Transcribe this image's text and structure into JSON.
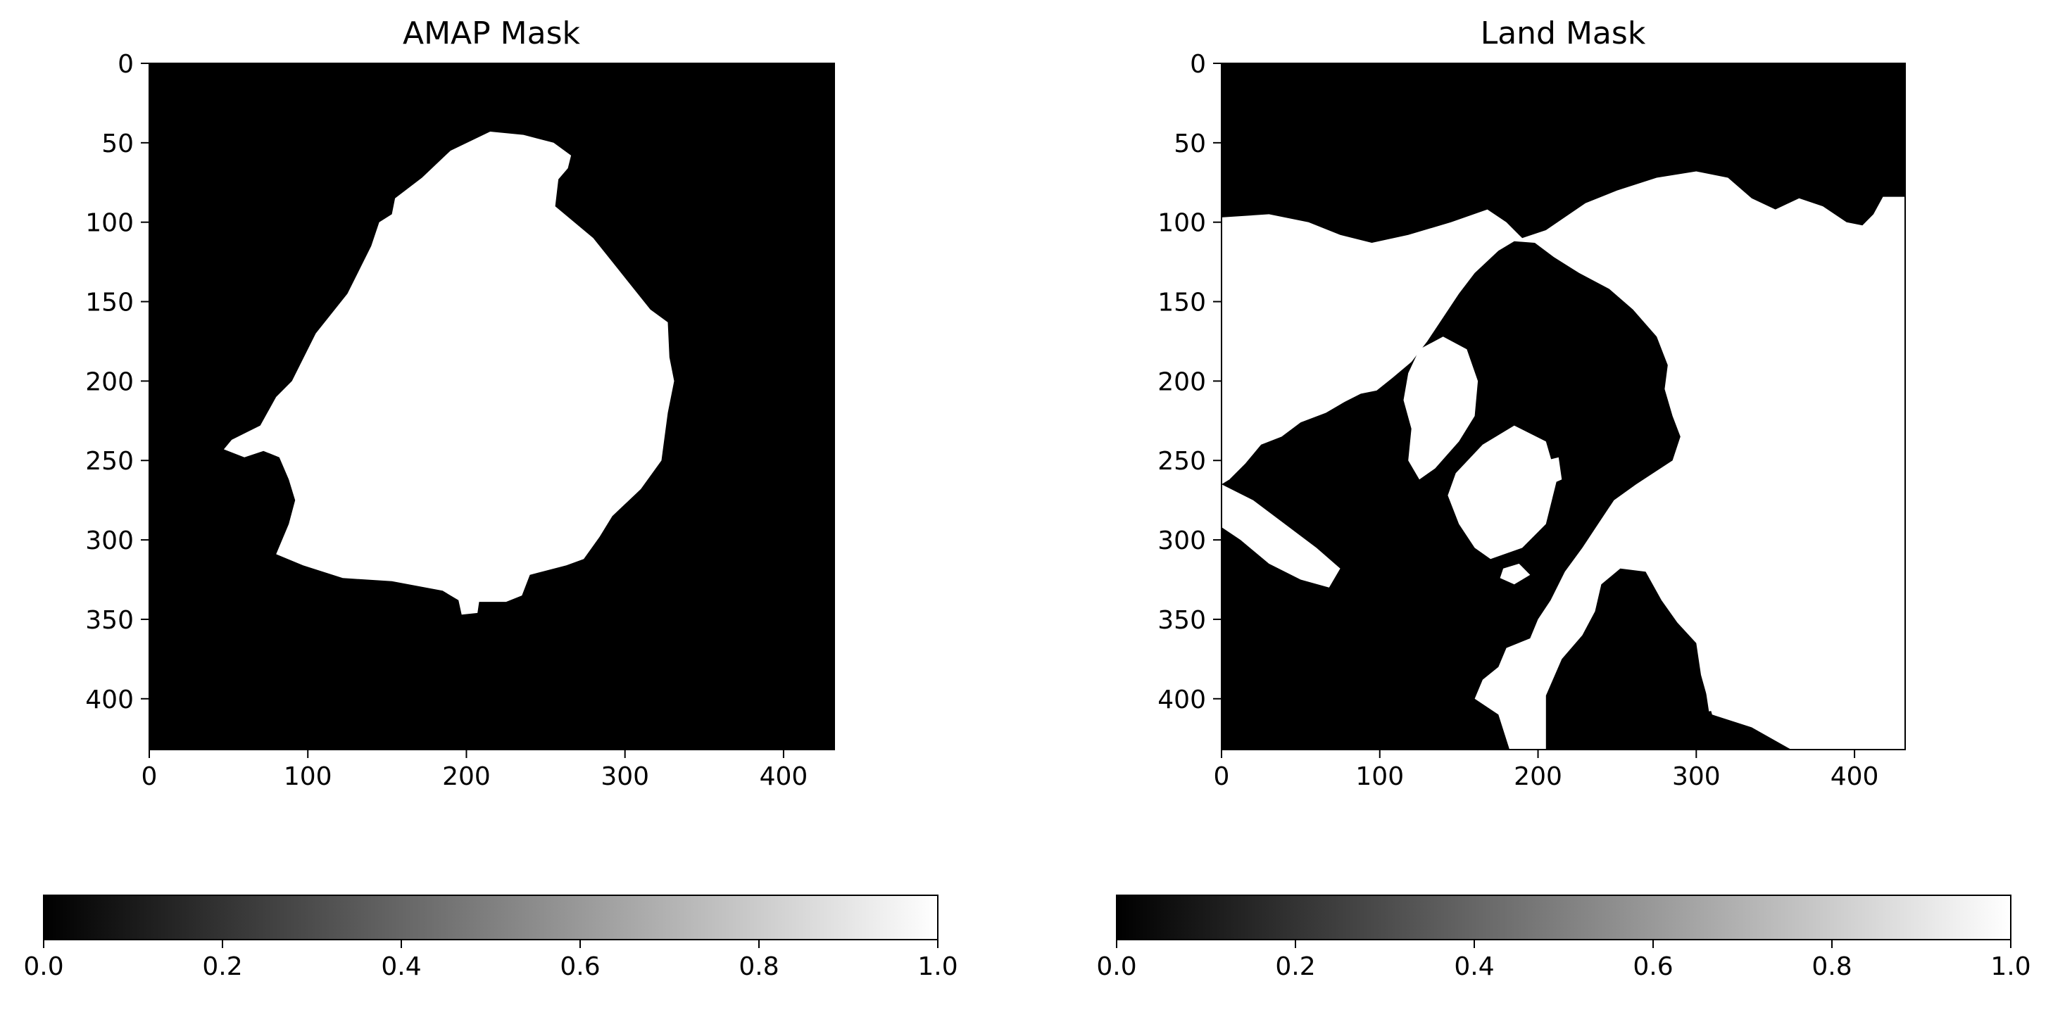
{
  "figure": {
    "background": "#ffffff"
  },
  "chart_data": [
    {
      "type": "heatmap",
      "title": "AMAP Mask",
      "xlabel": "",
      "ylabel": "",
      "xlim": [
        0,
        432
      ],
      "ylim": [
        432,
        0
      ],
      "x_ticks": [
        0,
        100,
        200,
        300,
        400
      ],
      "y_ticks": [
        0,
        50,
        100,
        150,
        200,
        250,
        300,
        350,
        400
      ],
      "colormap": "gray",
      "value_range": [
        0,
        1
      ],
      "grid": false,
      "description_values": "binary mask; 1 (white) inside AMAP region, 0 (black) outside",
      "colorbar": {
        "orientation": "horizontal",
        "ticks": [
          "0.0",
          "0.2",
          "0.4",
          "0.6",
          "0.8",
          "1.0"
        ],
        "range": [
          0,
          1
        ]
      },
      "region_value_1_boundary": [
        [
          215,
          43
        ],
        [
          236,
          45
        ],
        [
          255,
          50
        ],
        [
          266,
          58
        ],
        [
          264,
          66
        ],
        [
          258,
          73
        ],
        [
          256,
          90
        ],
        [
          280,
          110
        ],
        [
          292,
          125
        ],
        [
          304,
          140
        ],
        [
          316,
          155
        ],
        [
          327,
          163
        ],
        [
          328,
          185
        ],
        [
          331,
          200
        ],
        [
          327,
          220
        ],
        [
          323,
          250
        ],
        [
          310,
          268
        ],
        [
          292,
          285
        ],
        [
          284,
          298
        ],
        [
          274,
          312
        ],
        [
          263,
          316
        ],
        [
          240,
          322
        ],
        [
          235,
          335
        ],
        [
          225,
          339
        ],
        [
          208,
          339
        ],
        [
          207,
          346
        ],
        [
          197,
          347
        ],
        [
          195,
          338
        ],
        [
          185,
          332
        ],
        [
          153,
          326
        ],
        [
          122,
          324
        ],
        [
          97,
          316
        ],
        [
          80,
          309
        ],
        [
          88,
          290
        ],
        [
          92,
          275
        ],
        [
          88,
          262
        ],
        [
          82,
          248
        ],
        [
          72,
          244
        ],
        [
          60,
          248
        ],
        [
          47,
          243
        ],
        [
          52,
          237
        ],
        [
          62,
          232
        ],
        [
          70,
          228
        ],
        [
          80,
          210
        ],
        [
          90,
          200
        ],
        [
          95,
          190
        ],
        [
          105,
          170
        ],
        [
          125,
          145
        ],
        [
          140,
          115
        ],
        [
          145,
          100
        ],
        [
          153,
          95
        ],
        [
          155,
          85
        ],
        [
          172,
          72
        ],
        [
          190,
          55
        ]
      ]
    },
    {
      "type": "heatmap",
      "title": "Land Mask",
      "xlabel": "",
      "ylabel": "",
      "xlim": [
        0,
        432
      ],
      "ylim": [
        432,
        0
      ],
      "x_ticks": [
        0,
        100,
        200,
        300,
        400
      ],
      "y_ticks": [
        0,
        50,
        100,
        150,
        200,
        250,
        300,
        350,
        400
      ],
      "colormap": "gray",
      "value_range": [
        0,
        1
      ],
      "grid": false,
      "description_values": "binary mask; 1 (white) land, 0 (black) ocean",
      "colorbar": {
        "orientation": "horizontal",
        "ticks": [
          "0.0",
          "0.2",
          "0.4",
          "0.6",
          "0.8",
          "1.0"
        ],
        "range": [
          0,
          1
        ]
      },
      "land_value_1_regions": [
        [
          [
            0,
            97
          ],
          [
            30,
            95
          ],
          [
            55,
            100
          ],
          [
            75,
            108
          ],
          [
            95,
            113
          ],
          [
            118,
            108
          ],
          [
            145,
            100
          ],
          [
            168,
            92
          ],
          [
            180,
            100
          ],
          [
            190,
            110
          ],
          [
            205,
            105
          ],
          [
            230,
            88
          ],
          [
            250,
            80
          ],
          [
            275,
            72
          ],
          [
            300,
            68
          ],
          [
            320,
            72
          ],
          [
            335,
            85
          ],
          [
            350,
            92
          ],
          [
            365,
            85
          ],
          [
            380,
            90
          ],
          [
            395,
            100
          ],
          [
            405,
            102
          ],
          [
            412,
            95
          ],
          [
            418,
            84
          ],
          [
            432,
            84
          ],
          [
            432,
            432
          ],
          [
            360,
            432
          ],
          [
            335,
            418
          ],
          [
            310,
            410
          ],
          [
            303,
            385
          ],
          [
            300,
            365
          ],
          [
            288,
            352
          ],
          [
            278,
            338
          ],
          [
            268,
            320
          ],
          [
            252,
            318
          ],
          [
            240,
            328
          ],
          [
            236,
            345
          ],
          [
            228,
            360
          ],
          [
            215,
            375
          ],
          [
            205,
            398
          ],
          [
            205,
            432
          ],
          [
            182,
            432
          ],
          [
            175,
            410
          ],
          [
            160,
            400
          ],
          [
            165,
            388
          ],
          [
            175,
            380
          ],
          [
            180,
            368
          ],
          [
            195,
            362
          ],
          [
            200,
            350
          ],
          [
            208,
            338
          ],
          [
            217,
            320
          ],
          [
            228,
            305
          ],
          [
            238,
            290
          ],
          [
            248,
            275
          ],
          [
            262,
            265
          ],
          [
            285,
            250
          ],
          [
            290,
            235
          ],
          [
            285,
            222
          ],
          [
            280,
            205
          ],
          [
            282,
            190
          ],
          [
            275,
            172
          ],
          [
            260,
            155
          ],
          [
            245,
            142
          ],
          [
            226,
            132
          ],
          [
            210,
            122
          ],
          [
            198,
            113
          ],
          [
            185,
            112
          ],
          [
            175,
            118
          ],
          [
            160,
            132
          ],
          [
            150,
            145
          ],
          [
            140,
            160
          ],
          [
            130,
            175
          ],
          [
            120,
            188
          ],
          [
            108,
            198
          ],
          [
            98,
            206
          ],
          [
            88,
            208
          ],
          [
            78,
            213
          ],
          [
            66,
            220
          ],
          [
            50,
            226
          ],
          [
            38,
            235
          ],
          [
            25,
            240
          ],
          [
            15,
            252
          ],
          [
            5,
            262
          ],
          [
            0,
            265
          ]
        ],
        [
          [
            165,
            240
          ],
          [
            185,
            228
          ],
          [
            205,
            238
          ],
          [
            212,
            262
          ],
          [
            205,
            290
          ],
          [
            190,
            305
          ],
          [
            170,
            312
          ],
          [
            160,
            305
          ],
          [
            150,
            290
          ],
          [
            143,
            272
          ],
          [
            148,
            258
          ]
        ],
        [
          [
            125,
            180
          ],
          [
            140,
            172
          ],
          [
            155,
            180
          ],
          [
            162,
            200
          ],
          [
            160,
            222
          ],
          [
            150,
            238
          ],
          [
            135,
            255
          ],
          [
            125,
            262
          ],
          [
            118,
            250
          ],
          [
            120,
            230
          ],
          [
            115,
            212
          ],
          [
            118,
            195
          ]
        ],
        [
          [
            0,
            265
          ],
          [
            20,
            275
          ],
          [
            40,
            290
          ],
          [
            60,
            305
          ],
          [
            75,
            318
          ],
          [
            68,
            330
          ],
          [
            50,
            325
          ],
          [
            30,
            315
          ],
          [
            12,
            300
          ],
          [
            0,
            292
          ]
        ],
        [
          [
            355,
            338
          ],
          [
            375,
            332
          ],
          [
            390,
            345
          ],
          [
            385,
            358
          ],
          [
            370,
            365
          ],
          [
            360,
            355
          ]
        ],
        [
          [
            305,
            388
          ],
          [
            320,
            380
          ],
          [
            330,
            390
          ],
          [
            322,
            405
          ],
          [
            308,
            408
          ]
        ],
        [
          [
            402,
            380
          ],
          [
            418,
            378
          ],
          [
            432,
            374
          ],
          [
            432,
            390
          ],
          [
            418,
            392
          ],
          [
            404,
            390
          ]
        ],
        [
          [
            178,
            318
          ],
          [
            188,
            315
          ],
          [
            195,
            322
          ],
          [
            185,
            328
          ],
          [
            176,
            324
          ]
        ],
        [
          [
            205,
            250
          ],
          [
            213,
            248
          ],
          [
            215,
            262
          ],
          [
            208,
            265
          ]
        ],
        [
          [
            8,
            222
          ],
          [
            22,
            218
          ],
          [
            30,
            226
          ],
          [
            22,
            236
          ],
          [
            12,
            232
          ]
        ]
      ]
    }
  ]
}
